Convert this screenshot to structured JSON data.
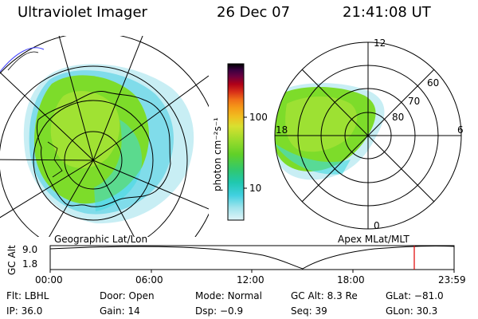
{
  "header": {
    "instrument": "Ultraviolet Imager",
    "date": "26 Dec 07",
    "time": "21:41:08 UT"
  },
  "left_panel": {
    "caption": "Geographic Lat/Lon"
  },
  "right_panel": {
    "caption": "Apex MLat/MLT",
    "mlt_labels": [
      "12",
      "18",
      "6",
      "0"
    ],
    "mlat_labels": [
      "60",
      "70",
      "80"
    ]
  },
  "colorbar": {
    "unit_label": "photon cm⁻²s⁻¹",
    "tick_labels": [
      "100",
      "10"
    ],
    "colors": [
      "#000000",
      "#2b0033",
      "#550055",
      "#6b0040",
      "#8b0020",
      "#b00010",
      "#d00020",
      "#e84020",
      "#f07018",
      "#f59a18",
      "#f0c020",
      "#d8e030",
      "#b0e030",
      "#80dc28",
      "#50d030",
      "#30c870",
      "#20c8b0",
      "#40d0e0",
      "#a0e4ec",
      "#e0f4f8"
    ]
  },
  "altitude_plot": {
    "ylabel": "GC Alt",
    "y_ticks": [
      "9.0",
      "1.8"
    ],
    "x_ticks": [
      "00:00",
      "06:00",
      "12:00",
      "18:00",
      "23:59"
    ],
    "marker_color": "#e00000"
  },
  "status": {
    "row1": [
      {
        "label": "Flt:",
        "value": "LBHL"
      },
      {
        "label": "Door:",
        "value": "Open"
      },
      {
        "label": "Mode:",
        "value": "Normal"
      },
      {
        "label": "GC Alt:",
        "value": "8.3 Re"
      },
      {
        "label": "GLat:",
        "value": "−81.0"
      }
    ],
    "row2": [
      {
        "label": "IP:",
        "value": "36.0"
      },
      {
        "label": "Gain:",
        "value": "14"
      },
      {
        "label": "Dsp:",
        "value": "−0.9"
      },
      {
        "label": "Seq:",
        "value": "39"
      },
      {
        "label": "GLon:",
        "value": "30.3"
      }
    ]
  },
  "colors": {
    "aurora_green": "#7ddc2a",
    "aurora_lime": "#b8e63a",
    "aurora_cyan": "#40d8e0",
    "aurora_light": "#c8eef4"
  }
}
